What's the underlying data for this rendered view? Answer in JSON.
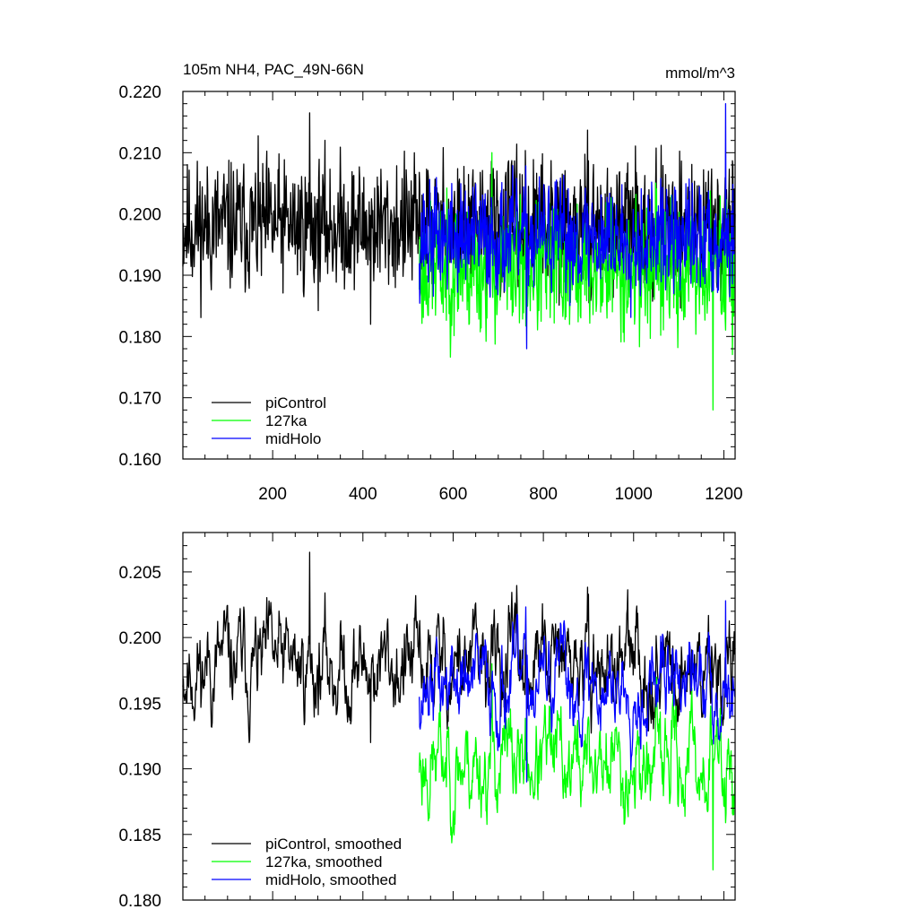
{
  "chart_data": [
    {
      "type": "line",
      "title": "105m NH4, PAC_49N-66N",
      "units": "mmol/m^3",
      "xlim": [
        1,
        1225
      ],
      "ylim": [
        0.16,
        0.22
      ],
      "x_ticks": [
        200,
        400,
        600,
        800,
        1000,
        1200
      ],
      "y_ticks": [
        "0.160",
        "0.170",
        "0.180",
        "0.190",
        "0.200",
        "0.210",
        "0.220"
      ],
      "legend": "bottom-left",
      "series": [
        {
          "name": "piControl",
          "color": "#000000",
          "x_range": [
            1,
            1225
          ],
          "mean": 0.198,
          "spread": 0.0065,
          "min": 0.182,
          "max": 0.2165,
          "seed": 11
        },
        {
          "name": "127ka",
          "color": "#00ff00",
          "x_range": [
            525,
            1225
          ],
          "mean": 0.191,
          "spread": 0.0065,
          "min": 0.168,
          "max": 0.21,
          "seed": 23
        },
        {
          "name": "midHolo",
          "color": "#0000ff",
          "x_range": [
            525,
            1225
          ],
          "mean": 0.196,
          "spread": 0.0055,
          "min": 0.178,
          "max": 0.218,
          "seed": 37
        }
      ]
    },
    {
      "type": "line",
      "xlim": [
        1,
        1225
      ],
      "ylim": [
        0.18,
        0.208
      ],
      "y_ticks": [
        "0.180",
        "0.185",
        "0.190",
        "0.195",
        "0.200",
        "0.205"
      ],
      "legend": "bottom-left",
      "series": [
        {
          "name": "piControl, smoothed",
          "color": "#000000",
          "x_range": [
            1,
            1225
          ],
          "mean": 0.1978,
          "spread": 0.0028,
          "min": 0.192,
          "max": 0.2065,
          "seed": 11
        },
        {
          "name": "127ka, smoothed",
          "color": "#00ff00",
          "x_range": [
            525,
            1225
          ],
          "mean": 0.1905,
          "spread": 0.0028,
          "min": 0.1823,
          "max": 0.198,
          "seed": 23
        },
        {
          "name": "midHolo, smoothed",
          "color": "#0000ff",
          "x_range": [
            525,
            1225
          ],
          "mean": 0.1965,
          "spread": 0.0025,
          "min": 0.189,
          "max": 0.2028,
          "seed": 37
        }
      ]
    }
  ]
}
